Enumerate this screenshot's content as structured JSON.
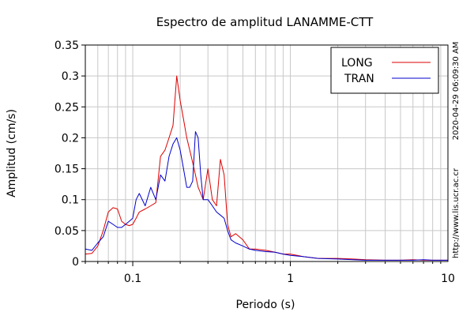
{
  "chart_data": {
    "type": "line",
    "title": "Espectro de amplitud LANAMME-CTT",
    "xlabel": "Periodo (s)",
    "ylabel": "Amplitud (cm/s)",
    "x_scale": "log",
    "xlim": [
      0.05,
      10
    ],
    "ylim": [
      0,
      0.35
    ],
    "grid": true,
    "legend_position": "top-right",
    "x_tick_labels": [
      "0.1",
      "1",
      "10"
    ],
    "y_tick_labels": [
      "0",
      "0.05",
      "0.1",
      "0.15",
      "0.2",
      "0.25",
      "0.3",
      "0.35"
    ],
    "series": [
      {
        "name": "LONG",
        "color": "#dd0000",
        "x": [
          0.05,
          0.055,
          0.06,
          0.065,
          0.07,
          0.075,
          0.08,
          0.085,
          0.09,
          0.095,
          0.1,
          0.105,
          0.11,
          0.12,
          0.13,
          0.14,
          0.15,
          0.16,
          0.17,
          0.18,
          0.19,
          0.2,
          0.21,
          0.22,
          0.23,
          0.24,
          0.25,
          0.26,
          0.27,
          0.28,
          0.3,
          0.32,
          0.34,
          0.36,
          0.38,
          0.4,
          0.42,
          0.45,
          0.5,
          0.55,
          0.6,
          0.7,
          0.8,
          0.9,
          1,
          1.2,
          1.5,
          2,
          2.5,
          3,
          4,
          5,
          6,
          7,
          8,
          9,
          10
        ],
        "y": [
          0.012,
          0.013,
          0.025,
          0.05,
          0.08,
          0.087,
          0.085,
          0.065,
          0.06,
          0.058,
          0.06,
          0.07,
          0.08,
          0.085,
          0.09,
          0.095,
          0.17,
          0.18,
          0.2,
          0.22,
          0.3,
          0.26,
          0.23,
          0.2,
          0.18,
          0.16,
          0.14,
          0.12,
          0.11,
          0.1,
          0.15,
          0.1,
          0.09,
          0.165,
          0.14,
          0.06,
          0.04,
          0.045,
          0.035,
          0.02,
          0.02,
          0.018,
          0.015,
          0.012,
          0.012,
          0.008,
          0.005,
          0.005,
          0.004,
          0.003,
          0.002,
          0.002,
          0.003,
          0.002,
          0.002,
          0.002,
          0.002
        ]
      },
      {
        "name": "TRAN",
        "color": "#0000cc",
        "x": [
          0.05,
          0.055,
          0.06,
          0.065,
          0.07,
          0.075,
          0.08,
          0.085,
          0.09,
          0.095,
          0.1,
          0.105,
          0.11,
          0.12,
          0.13,
          0.14,
          0.15,
          0.16,
          0.17,
          0.18,
          0.19,
          0.2,
          0.21,
          0.22,
          0.23,
          0.24,
          0.25,
          0.26,
          0.27,
          0.28,
          0.3,
          0.32,
          0.34,
          0.36,
          0.38,
          0.4,
          0.42,
          0.45,
          0.5,
          0.55,
          0.6,
          0.7,
          0.8,
          0.9,
          1,
          1.2,
          1.5,
          2,
          2.5,
          3,
          4,
          5,
          6,
          7,
          8,
          9,
          10
        ],
        "y": [
          0.02,
          0.018,
          0.03,
          0.04,
          0.065,
          0.06,
          0.055,
          0.055,
          0.06,
          0.065,
          0.07,
          0.1,
          0.11,
          0.09,
          0.12,
          0.1,
          0.14,
          0.13,
          0.17,
          0.19,
          0.2,
          0.18,
          0.15,
          0.12,
          0.12,
          0.13,
          0.21,
          0.2,
          0.14,
          0.1,
          0.1,
          0.09,
          0.08,
          0.075,
          0.07,
          0.05,
          0.035,
          0.03,
          0.025,
          0.02,
          0.018,
          0.016,
          0.015,
          0.012,
          0.01,
          0.008,
          0.005,
          0.004,
          0.003,
          0.002,
          0.002,
          0.002,
          0.002,
          0.003,
          0.002,
          0.002,
          0.002
        ]
      }
    ],
    "annotations": [
      "http://www.lis.ucr.ac.cr",
      "2020-04-29 06:09:30 AM"
    ]
  }
}
